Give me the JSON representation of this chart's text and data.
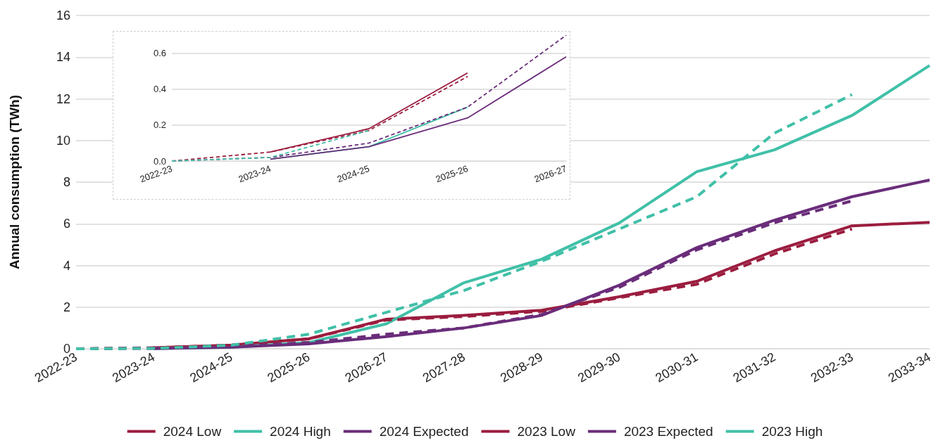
{
  "chart_data": [
    {
      "type": "line",
      "ylabel": "Annual consumption (TWh)",
      "categories": [
        "2022-23",
        "2023-24",
        "2024-25",
        "2025-26",
        "2026-27",
        "2027-28",
        "2028-29",
        "2029-30",
        "2030-31",
        "2031-32",
        "2032-33",
        "2033-34"
      ],
      "ylim": [
        0,
        16
      ],
      "yticks": [
        0,
        2,
        4,
        6,
        8,
        10,
        12,
        14,
        16
      ],
      "grid": "y",
      "legend": "bottom",
      "marker": "none",
      "series": [
        {
          "name": "2024 Low",
          "color": "#9b1d3f",
          "line_style": "solid",
          "values": [
            null,
            0.05,
            0.18,
            0.48,
            1.42,
            1.6,
            1.85,
            2.5,
            3.24,
            4.7,
            5.9,
            6.07
          ]
        },
        {
          "name": "2024 High",
          "color": "#40c0a8",
          "line_style": "solid",
          "values": [
            null,
            0.01,
            0.08,
            0.3,
            1.2,
            3.17,
            4.3,
            6.04,
            8.5,
            9.55,
            11.2,
            13.6
          ]
        },
        {
          "name": "2024 Expected",
          "color": "#6a2d7a",
          "line_style": "solid",
          "values": [
            null,
            0.01,
            0.08,
            0.24,
            0.58,
            1.0,
            1.6,
            3.05,
            4.86,
            6.17,
            7.3,
            8.1
          ]
        },
        {
          "name": "2023 Low",
          "color": "#9b1d3f",
          "line_style": "dashed",
          "values": [
            0,
            0.05,
            0.17,
            0.47,
            1.38,
            1.55,
            1.8,
            2.45,
            3.1,
            4.55,
            5.75,
            null
          ]
        },
        {
          "name": "2023 Expected",
          "color": "#6a2d7a",
          "line_style": "dashed",
          "values": [
            0,
            0.02,
            0.1,
            0.3,
            0.7,
            1.0,
            1.65,
            2.95,
            4.75,
            6.05,
            7.1,
            null
          ]
        },
        {
          "name": "2023 High",
          "color": "#40c0a8",
          "line_style": "dashed",
          "values": [
            0,
            0.02,
            0.17,
            0.7,
            1.75,
            2.8,
            4.2,
            5.75,
            7.3,
            10.35,
            12.2,
            null
          ]
        }
      ]
    },
    {
      "type": "line",
      "categories": [
        "2022-23",
        "2023-24",
        "2024-25",
        "2025-26",
        "2026-27"
      ],
      "ylim": [
        0,
        0.72
      ],
      "yticks": [
        {
          "value": 0,
          "label": "0.0"
        },
        0.2,
        0.4,
        0.6
      ],
      "grid": "y",
      "marker": "none",
      "series": [
        {
          "color": "#9b1d3f",
          "line_style": "solid",
          "values": [
            null,
            0.05,
            0.18,
            0.49,
            null
          ]
        },
        {
          "color": "#40c0a8",
          "line_style": "solid",
          "values": [
            null,
            0.01,
            0.08,
            0.3,
            null
          ]
        },
        {
          "color": "#6a2d7a",
          "line_style": "solid",
          "values": [
            null,
            0.01,
            0.08,
            0.24,
            0.58
          ]
        },
        {
          "color": "#9b1d3f",
          "line_style": "dashed",
          "values": [
            0,
            0.05,
            0.17,
            0.47,
            null
          ]
        },
        {
          "color": "#6a2d7a",
          "line_style": "dashed",
          "values": [
            0,
            0.02,
            0.1,
            0.3,
            0.7
          ]
        },
        {
          "color": "#40c0a8",
          "line_style": "dashed",
          "values": [
            0,
            0.02,
            0.17,
            null,
            null
          ]
        }
      ]
    }
  ]
}
